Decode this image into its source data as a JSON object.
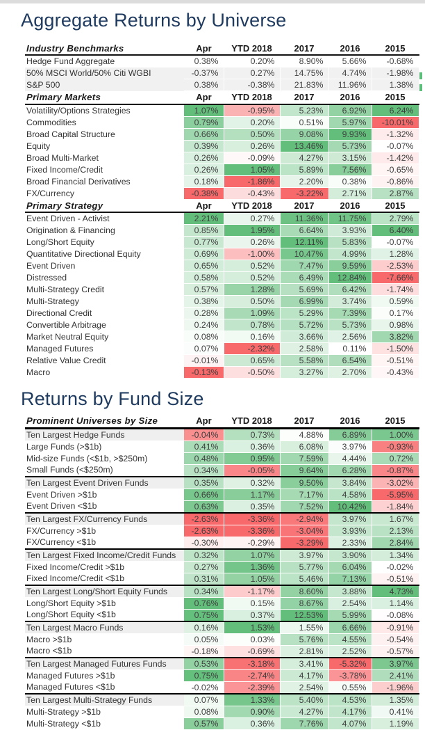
{
  "page": {
    "background": "#FFFFFF",
    "top_strip_color": "#DCDCDC",
    "title_color": "#1E3A5F"
  },
  "titles": {
    "table1": "Aggregate Returns by Universe",
    "table2": "Returns by Fund Size"
  },
  "columns": [
    "Apr",
    "YTD 2018",
    "2017",
    "2016",
    "2015"
  ],
  "heat_colors": {
    "positive": "#63BE7B",
    "negative": "#F8696B",
    "neutral": "#FFFFFF",
    "row_shade": "#EFEFEF"
  },
  "unit": "%",
  "chart_data": [
    {
      "type": "heatmap",
      "title": "Aggregate Returns by Universe",
      "columns": [
        "Apr",
        "YTD 2018",
        "2017",
        "2016",
        "2015"
      ],
      "sections": [
        {
          "header": "Industry Benchmarks",
          "heatmap": false,
          "rows": [
            {
              "label": "Hedge Fund Aggregate",
              "values": [
                0.38,
                0.2,
                8.9,
                5.66,
                -0.68
              ],
              "shaded": false
            },
            {
              "label": "50% MSCI World/50% Citi WGBI",
              "values": [
                -0.37,
                0.27,
                14.75,
                4.74,
                -1.98
              ],
              "shaded": true
            },
            {
              "label": "S&P 500",
              "values": [
                0.38,
                -0.38,
                21.83,
                11.96,
                1.38
              ],
              "shaded": true
            }
          ]
        },
        {
          "header": "Primary Markets",
          "heatmap": true,
          "rows": [
            {
              "label": "Volatility/Options Strategies",
              "values": [
                1.07,
                -0.95,
                5.23,
                6.92,
                6.24
              ]
            },
            {
              "label": "Commodities",
              "values": [
                0.79,
                0.2,
                0.51,
                5.97,
                -10.01
              ]
            },
            {
              "label": "Broad Capital Structure",
              "values": [
                0.66,
                0.5,
                9.08,
                9.93,
                -1.32
              ]
            },
            {
              "label": "Equity",
              "values": [
                0.39,
                0.26,
                13.46,
                5.73,
                -0.07
              ]
            },
            {
              "label": "Broad Multi-Market",
              "values": [
                0.26,
                -0.09,
                4.27,
                3.15,
                -1.42
              ]
            },
            {
              "label": "Fixed Income/Credit",
              "values": [
                0.26,
                1.05,
                5.89,
                7.56,
                -0.65
              ]
            },
            {
              "label": "Broad Financial Derivatives",
              "values": [
                0.18,
                -1.86,
                2.2,
                0.38,
                -0.86
              ]
            },
            {
              "label": "FX/Currency",
              "values": [
                -0.38,
                -0.43,
                -3.22,
                2.71,
                2.87
              ]
            }
          ]
        },
        {
          "header": "Primary Strategy",
          "heatmap": true,
          "rows": [
            {
              "label": "Event Driven - Activist",
              "values": [
                2.21,
                0.27,
                11.36,
                11.75,
                2.79
              ]
            },
            {
              "label": "Origination & Financing",
              "values": [
                0.85,
                1.95,
                6.64,
                3.93,
                6.4
              ]
            },
            {
              "label": "Long/Short Equity",
              "values": [
                0.77,
                0.26,
                12.11,
                5.83,
                -0.07
              ]
            },
            {
              "label": "Quantitative Directional Equity",
              "values": [
                0.69,
                -1.0,
                10.47,
                4.99,
                1.28
              ]
            },
            {
              "label": "Event Driven",
              "values": [
                0.65,
                0.52,
                7.47,
                9.59,
                -2.53
              ]
            },
            {
              "label": "Distressed",
              "values": [
                0.58,
                0.52,
                6.49,
                12.84,
                -7.66
              ]
            },
            {
              "label": "Multi-Strategy Credit",
              "values": [
                0.57,
                1.28,
                5.69,
                6.42,
                -1.74
              ]
            },
            {
              "label": "Multi-Strategy",
              "values": [
                0.38,
                0.5,
                6.99,
                3.74,
                0.59
              ]
            },
            {
              "label": "Directional Credit",
              "values": [
                0.28,
                1.09,
                5.29,
                7.39,
                0.17
              ]
            },
            {
              "label": "Convertible Arbitrage",
              "values": [
                0.24,
                0.78,
                5.72,
                5.73,
                0.98
              ]
            },
            {
              "label": "Market Neutral Equity",
              "values": [
                0.08,
                0.16,
                3.66,
                2.56,
                3.82
              ]
            },
            {
              "label": "Managed Futures",
              "values": [
                0.07,
                -2.32,
                2.58,
                0.11,
                -1.5
              ]
            },
            {
              "label": "Relative Value Credit",
              "values": [
                -0.01,
                0.65,
                5.58,
                6.54,
                -0.51
              ]
            },
            {
              "label": "Macro",
              "values": [
                -0.13,
                -0.5,
                3.27,
                2.7,
                -0.43
              ]
            }
          ]
        }
      ]
    },
    {
      "type": "heatmap",
      "title": "Returns by Fund Size",
      "header": "Prominent Universes by Size",
      "columns": [
        "Apr",
        "YTD 2018",
        "2017",
        "2016",
        "2015"
      ],
      "groups": [
        {
          "rows": [
            {
              "label": "Ten Largest Hedge Funds",
              "leader": true,
              "values": [
                -0.04,
                0.73,
                4.88,
                6.89,
                1.0
              ],
              "tones": [
                -0.75,
                null,
                0.02,
                0.78,
                0.85
              ]
            },
            {
              "label": "Large Funds (>$1b)",
              "values": [
                0.41,
                0.36,
                6.08,
                3.97,
                -0.93
              ],
              "tones": [
                null,
                null,
                0.25,
                0.03,
                -0.85
              ]
            },
            {
              "label": "Mid-size Funds (<$1b, >$250m)",
              "values": [
                0.48,
                0.95,
                7.59,
                4.44,
                0.72
              ],
              "tones": [
                null,
                0.8,
                null,
                0.15,
                0.55
              ]
            },
            {
              "label": "Small Funds (<$250m)",
              "values": [
                0.34,
                -0.05,
                9.64,
                6.28,
                -0.87
              ],
              "tones": [
                null,
                -0.8,
                null,
                null,
                -0.8
              ]
            }
          ]
        },
        {
          "rows": [
            {
              "label": "Ten Largest Event Driven Funds",
              "leader": true,
              "values": [
                0.35,
                0.32,
                9.5,
                3.84,
                -3.02
              ]
            },
            {
              "label": "Event Driven >$1b",
              "values": [
                0.66,
                1.17,
                7.17,
                4.58,
                -5.95
              ]
            },
            {
              "label": "Event Driven <$1b",
              "values": [
                0.63,
                0.35,
                7.52,
                10.42,
                -1.84
              ]
            }
          ]
        },
        {
          "rows": [
            {
              "label": "Ten Largest FX/Currency Funds",
              "leader": true,
              "values": [
                -2.63,
                -3.36,
                -2.94,
                3.97,
                1.67
              ]
            },
            {
              "label": "FX/Currency >$1b",
              "values": [
                -2.63,
                -3.36,
                -3.04,
                3.93,
                2.13
              ]
            },
            {
              "label": "FX/Currency <$1b",
              "values": [
                -0.3,
                -0.29,
                -3.29,
                2.33,
                2.84
              ]
            }
          ]
        },
        {
          "rows": [
            {
              "label": "Ten Largest Fixed Income/Credit Funds",
              "leader": true,
              "values": [
                0.32,
                1.07,
                3.97,
                3.9,
                1.34
              ]
            },
            {
              "label": "Fixed Income/Credit >$1b",
              "values": [
                0.27,
                1.36,
                5.77,
                6.04,
                -0.02
              ]
            },
            {
              "label": "Fixed Income/Credit <$1b",
              "values": [
                0.31,
                1.05,
                5.46,
                7.13,
                -0.51
              ]
            }
          ]
        },
        {
          "rows": [
            {
              "label": "Ten Largest Long/Short Equity Funds",
              "leader": true,
              "values": [
                0.34,
                -1.17,
                8.6,
                3.88,
                4.73
              ]
            },
            {
              "label": "Long/Short Equity >$1b",
              "values": [
                0.76,
                0.15,
                8.67,
                2.54,
                1.14
              ]
            },
            {
              "label": "Long/Short Equity <$1b",
              "values": [
                0.75,
                0.37,
                12.53,
                5.99,
                -0.08
              ]
            }
          ]
        },
        {
          "rows": [
            {
              "label": "Ten Largest Macro Funds",
              "leader": true,
              "values": [
                0.16,
                1.53,
                1.55,
                6.66,
                -0.91
              ]
            },
            {
              "label": "Macro >$1b",
              "values": [
                0.05,
                0.03,
                5.76,
                4.55,
                -0.54
              ]
            },
            {
              "label": "Macro <$1b",
              "values": [
                -0.18,
                -0.69,
                2.81,
                2.52,
                -0.57
              ]
            }
          ]
        },
        {
          "rows": [
            {
              "label": "Ten Largest Managed Futures Funds",
              "leader": true,
              "values": [
                0.53,
                -3.18,
                3.41,
                -5.32,
                3.97
              ]
            },
            {
              "label": "Managed Futures >$1b",
              "values": [
                0.75,
                -2.74,
                4.17,
                -3.78,
                2.41
              ]
            },
            {
              "label": "Managed Futures <$1b",
              "values": [
                -0.02,
                -2.39,
                2.54,
                0.55,
                -1.96
              ]
            }
          ]
        },
        {
          "rows": [
            {
              "label": "Ten Largest Multi-Strategy Funds",
              "leader": true,
              "values": [
                0.07,
                1.33,
                5.4,
                4.53,
                1.35
              ]
            },
            {
              "label": "Multi-Strategy >$1b",
              "values": [
                0.08,
                0.9,
                4.27,
                4.17,
                0.41
              ]
            },
            {
              "label": "Multi-Strategy <$1b",
              "values": [
                0.57,
                0.36,
                7.76,
                4.07,
                1.19
              ]
            }
          ]
        }
      ]
    }
  ]
}
